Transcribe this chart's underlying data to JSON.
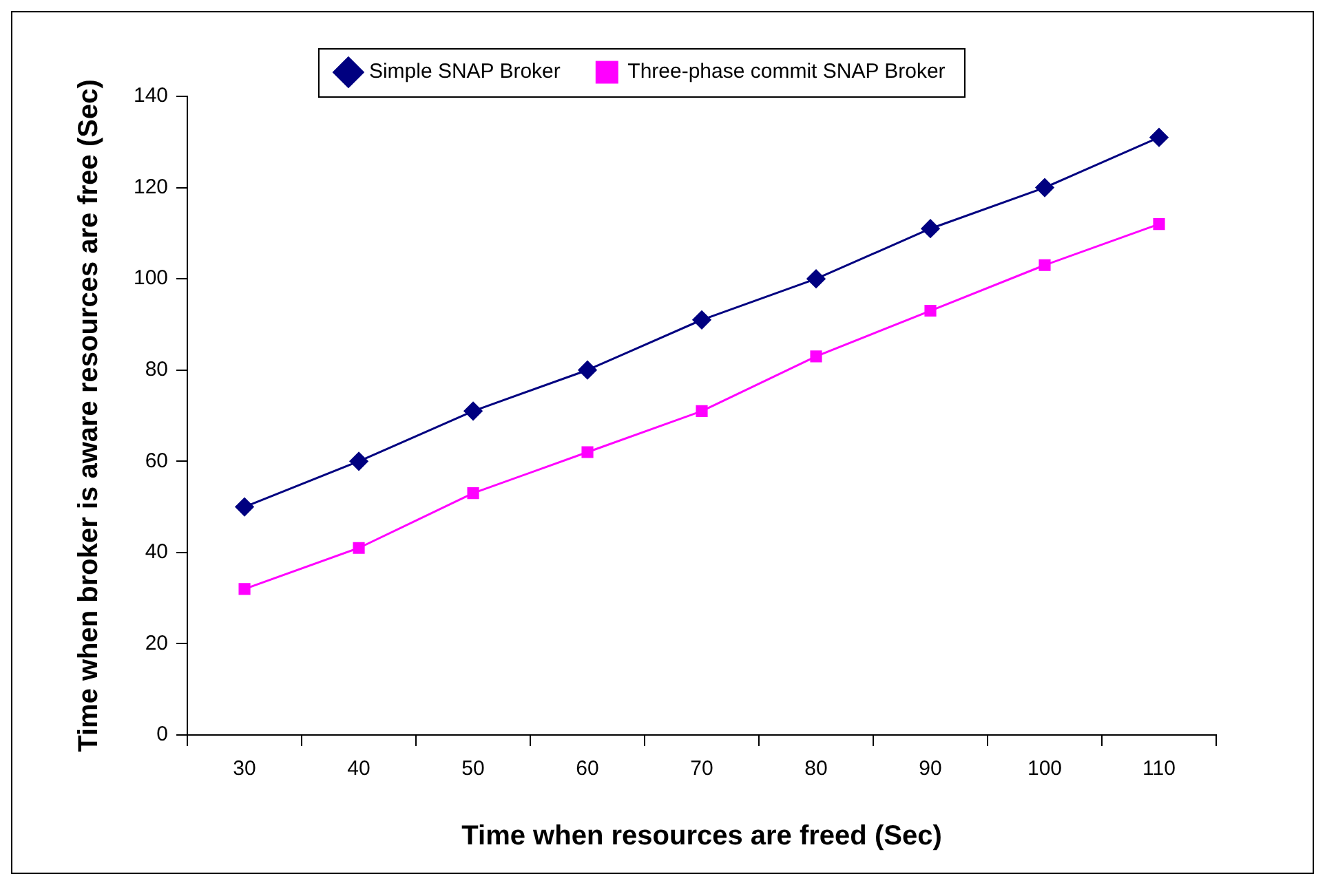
{
  "chart_data": {
    "type": "line",
    "xlabel": "Time when resources are freed (Sec)",
    "ylabel": "Time when broker is aware resources are free (Sec)",
    "categories": [
      "30",
      "40",
      "50",
      "60",
      "70",
      "80",
      "90",
      "100",
      "110"
    ],
    "series": [
      {
        "name": "Simple SNAP Broker",
        "color": "#000080",
        "marker": "diamond",
        "values": [
          50,
          60,
          71,
          80,
          91,
          100,
          111,
          120,
          131
        ]
      },
      {
        "name": "Three-phase commit SNAP Broker",
        "color": "#ff00ff",
        "marker": "square",
        "values": [
          32,
          41,
          53,
          62,
          71,
          83,
          93,
          103,
          112
        ]
      }
    ],
    "ylim": [
      0,
      140
    ],
    "yticks": [
      0,
      20,
      40,
      60,
      80,
      100,
      120,
      140
    ],
    "grid": false,
    "legend": "top",
    "line_style": "solid"
  }
}
